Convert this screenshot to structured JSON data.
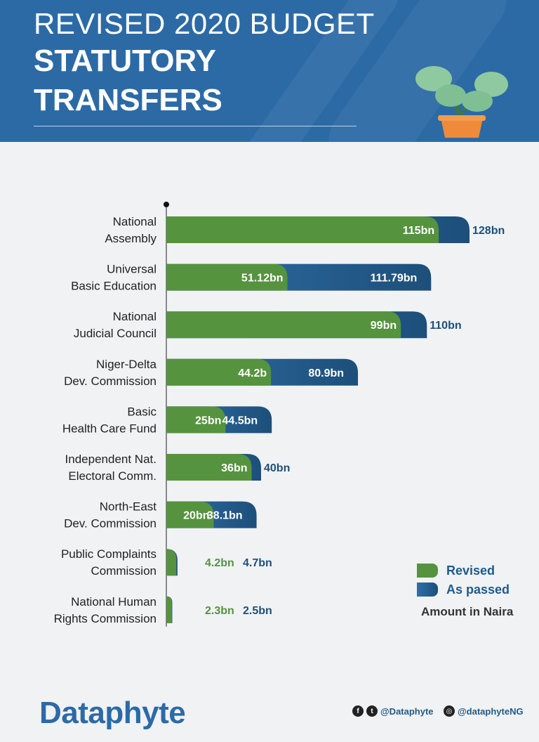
{
  "header": {
    "line1": "REVISED 2020 BUDGET",
    "line2": "STATUTORY",
    "line3": "TRANSFERS"
  },
  "colors": {
    "header_bg": "#2c6aa6",
    "revised": "#55933f",
    "as_passed": "#1d4f7a",
    "background": "#f1f2f4"
  },
  "chart_data": {
    "type": "bar",
    "orientation": "horizontal",
    "categories": [
      [
        "National",
        "Assembly"
      ],
      [
        "Universal",
        "Basic Education"
      ],
      [
        "National",
        "Judicial Council"
      ],
      [
        "Niger-Delta",
        "Dev. Commission"
      ],
      [
        "Basic",
        "Health Care Fund"
      ],
      [
        "Independent Nat.",
        "Electoral Comm."
      ],
      [
        "North-East",
        "Dev. Commission"
      ],
      [
        "Public Complaints",
        "Commission"
      ],
      [
        "National Human",
        "Rights Commission"
      ]
    ],
    "series": [
      {
        "name": "Revised",
        "values": [
          115,
          51.12,
          99,
          44.2,
          25,
          36,
          20,
          4.2,
          2.3
        ],
        "labels": [
          "115bn",
          "51.12bn",
          "99bn",
          "44.2b",
          "25bn",
          "36bn",
          "20bn",
          "4.2bn",
          "2.3bn"
        ]
      },
      {
        "name": "As passed",
        "values": [
          128,
          111.79,
          110,
          80.9,
          44.5,
          40,
          38.1,
          4.7,
          2.5
        ],
        "labels": [
          "128bn",
          "111.79bn",
          "110bn",
          "80.9bn",
          "44.5bn",
          "40bn",
          "38.1bn",
          "4.7bn",
          "2.5bn"
        ]
      }
    ],
    "legend_position": "bottom-right",
    "unit_note": "Amount in Naira"
  },
  "footer": {
    "brand": "Dataphyte",
    "twitter_handle": "@Dataphyte",
    "instagram_handle": "@dataphyteNG"
  }
}
